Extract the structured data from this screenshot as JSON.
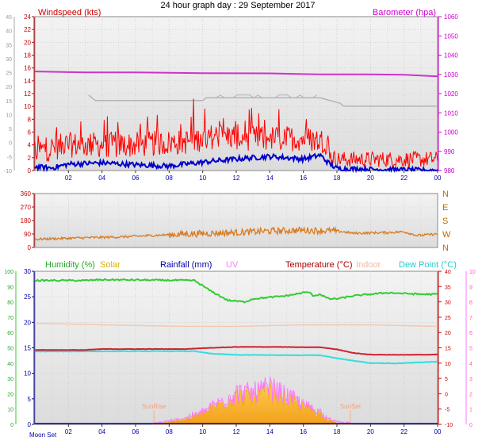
{
  "title": "24 hour graph day : 29 September 2017",
  "colors": {
    "wind": "#ff0000",
    "gust": "#ff0000",
    "avg_wind": "#0000cc",
    "baro": "#cc33cc",
    "cloud": "#b4b4b4",
    "direction": "#d97a1f",
    "humidity": "#33cc33",
    "solar": "#e8b800",
    "rain": "#0000aa",
    "uv": "#ff77ff",
    "temp": "#cc2233",
    "indoor": "#f4c8b0",
    "dew": "#33dddd",
    "axis_left": "#cc0000",
    "axis_right": "#cc00cc"
  },
  "time_labels": [
    "02",
    "04",
    "06",
    "08",
    "10",
    "12",
    "14",
    "16",
    "18",
    "20",
    "22",
    "00"
  ],
  "moon_set_label": "Moon Set",
  "chart_data": [
    {
      "type": "line",
      "id": "wind_baro",
      "title": "",
      "legend_left": "Windspeed (kts)",
      "legend_right": "Barometer (hpa)",
      "x_range_hours": [
        0,
        24
      ],
      "outer_axis": {
        "ylim": [
          -10,
          45
        ],
        "ticks": [
          -10,
          -5,
          0,
          5,
          10,
          15,
          20,
          25,
          30,
          35,
          40,
          45
        ]
      },
      "wind_axis": {
        "ylim": [
          0,
          24
        ],
        "ticks": [
          0,
          2,
          4,
          6,
          8,
          10,
          12,
          14,
          16,
          18,
          20,
          22,
          24
        ]
      },
      "baro_axis": {
        "ylim": [
          980,
          1060
        ],
        "ticks": [
          980,
          990,
          1000,
          1010,
          1020,
          1030,
          1040,
          1050,
          1060
        ]
      },
      "series": [
        {
          "key": "baro",
          "points": [
            [
              0,
              1031.5
            ],
            [
              3,
              1031
            ],
            [
              6,
              1031
            ],
            [
              10,
              1030.6
            ],
            [
              14,
              1030.5
            ],
            [
              17,
              1030
            ],
            [
              20,
              1030
            ],
            [
              22,
              1029.8
            ],
            [
              24,
              1029
            ]
          ]
        },
        {
          "key": "cloud",
          "points": [
            [
              3.2,
              17
            ],
            [
              3.6,
              15
            ],
            [
              10,
              15
            ],
            [
              10.2,
              16
            ],
            [
              17,
              16
            ],
            [
              18.2,
              14
            ],
            [
              18.4,
              13
            ],
            [
              24,
              13
            ]
          ]
        }
      ],
      "wind_profile": [
        [
          0,
          3
        ],
        [
          2,
          4
        ],
        [
          6,
          4
        ],
        [
          9,
          4.5
        ],
        [
          11,
          5.5
        ],
        [
          13,
          5
        ],
        [
          16,
          5
        ],
        [
          17.5,
          4.5
        ],
        [
          17.6,
          2
        ],
        [
          18,
          1.5
        ],
        [
          24,
          1.5
        ]
      ],
      "avg_profile": [
        [
          0,
          0.6
        ],
        [
          1,
          0.4
        ],
        [
          2,
          1
        ],
        [
          4,
          1.2
        ],
        [
          6,
          0.9
        ],
        [
          8,
          0.7
        ],
        [
          10,
          1.3
        ],
        [
          12,
          1.8
        ],
        [
          14,
          2.2
        ],
        [
          16,
          1.8
        ],
        [
          17,
          2.4
        ],
        [
          17.5,
          1.2
        ],
        [
          18,
          0.3
        ],
        [
          24,
          0
        ]
      ]
    },
    {
      "type": "line",
      "id": "direction",
      "y_ticks": [
        0,
        90,
        180,
        270,
        360
      ],
      "ylim": [
        0,
        360
      ],
      "compass": [
        "N",
        "W",
        "S",
        "E",
        "N"
      ],
      "series": [
        {
          "key": "direction",
          "points": [
            [
              0,
              55
            ],
            [
              3,
              65
            ],
            [
              5,
              70
            ],
            [
              7,
              80
            ],
            [
              9,
              90
            ],
            [
              12,
              100
            ],
            [
              14,
              110
            ],
            [
              16,
              115
            ],
            [
              18,
              110
            ],
            [
              19,
              95
            ],
            [
              21,
              100
            ],
            [
              22,
              105
            ],
            [
              22.8,
              80
            ],
            [
              24,
              90
            ]
          ]
        }
      ]
    },
    {
      "type": "line",
      "id": "humidity_temp",
      "legends": [
        "Humidity (%)",
        "Solar",
        "Rainfall (mm)",
        "UV",
        "Temperature (°C)",
        "Indoor",
        "Dew Point (°C)"
      ],
      "humidity_axis": {
        "ylim": [
          0,
          100
        ],
        "ticks": [
          0,
          10,
          20,
          30,
          40,
          50,
          60,
          70,
          80,
          90,
          100
        ]
      },
      "rain_axis": {
        "ylim": [
          0,
          30
        ],
        "ticks": [
          0,
          5,
          10,
          15,
          20,
          25,
          30
        ]
      },
      "temp_axis": {
        "ylim": [
          -10,
          40
        ],
        "ticks": [
          -10,
          -5,
          0,
          5,
          10,
          15,
          20,
          25,
          30,
          35,
          40
        ]
      },
      "uv_axis": {
        "ylim": [
          0,
          10
        ],
        "ticks": [
          0,
          1,
          2,
          3,
          4,
          5,
          6,
          7,
          8,
          9,
          10
        ]
      },
      "sunrise_label": "SunRise",
      "sunset_label": "SunSet",
      "sunrise_hour": 7.1,
      "sunset_hour": 18.8,
      "series": [
        {
          "key": "humidity",
          "axis": "humidity",
          "points": [
            [
              0,
              94
            ],
            [
              3,
              94
            ],
            [
              4,
              94.5
            ],
            [
              9.5,
              94
            ],
            [
              10.5,
              87
            ],
            [
              11.5,
              81
            ],
            [
              12.5,
              80
            ],
            [
              13,
              82
            ],
            [
              15,
              84
            ],
            [
              16,
              86
            ],
            [
              16.3,
              86.5
            ],
            [
              16.6,
              84
            ],
            [
              17,
              85
            ],
            [
              17.5,
              82
            ],
            [
              18,
              82
            ],
            [
              19,
              84
            ],
            [
              21,
              86
            ],
            [
              23,
              85
            ],
            [
              24,
              85
            ]
          ]
        },
        {
          "key": "indoor",
          "axis": "temp",
          "points": [
            [
              0,
              23
            ],
            [
              4,
              22.5
            ],
            [
              9,
              22
            ],
            [
              12,
              22
            ],
            [
              16,
              22.5
            ],
            [
              20,
              22.5
            ],
            [
              24,
              22
            ]
          ]
        },
        {
          "key": "temp",
          "axis": "temp",
          "points": [
            [
              0,
              14.3
            ],
            [
              3,
              14.3
            ],
            [
              4,
              14.6
            ],
            [
              9,
              14.6
            ],
            [
              10,
              14.9
            ],
            [
              12,
              15.3
            ],
            [
              14,
              15.3
            ],
            [
              16,
              15.2
            ],
            [
              17,
              15.2
            ],
            [
              18,
              14.5
            ],
            [
              19,
              13.3
            ],
            [
              20,
              12.8
            ],
            [
              22,
              12.7
            ],
            [
              24,
              12.8
            ]
          ]
        },
        {
          "key": "dew",
          "axis": "temp",
          "points": [
            [
              0,
              13.8
            ],
            [
              6,
              13.9
            ],
            [
              9.5,
              13.9
            ],
            [
              10.5,
              13.1
            ],
            [
              12,
              12.7
            ],
            [
              15,
              12.6
            ],
            [
              17,
              12.6
            ],
            [
              18,
              11.6
            ],
            [
              19,
              10.8
            ],
            [
              20,
              10
            ],
            [
              21.5,
              9.9
            ],
            [
              24,
              10.5
            ]
          ]
        },
        {
          "key": "solar",
          "axis": "rain",
          "points": [
            [
              7.1,
              0
            ],
            [
              8,
              0.5
            ],
            [
              9,
              1.2
            ],
            [
              10,
              2.5
            ],
            [
              11,
              4.5
            ],
            [
              12,
              6.5
            ],
            [
              13,
              6.5
            ],
            [
              14,
              7.5
            ],
            [
              15,
              6
            ],
            [
              16,
              4
            ],
            [
              17,
              2.5
            ],
            [
              17.5,
              1
            ],
            [
              18,
              0.3
            ],
            [
              18.8,
              0
            ]
          ]
        }
      ]
    }
  ]
}
